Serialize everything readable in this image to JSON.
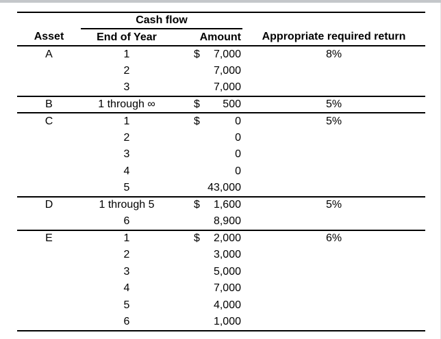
{
  "colors": {
    "table_line": "#000000",
    "background": "#ffffff",
    "frame_top_bar": "#c4c7ca",
    "frame_right_edge": "#e3e3e3"
  },
  "table": {
    "group_header": "Cash flow",
    "columns": [
      "Asset",
      "End of Year",
      "Amount",
      "Appropriate required return"
    ],
    "sections": [
      {
        "asset": "A",
        "required_return": "8%",
        "rows": [
          {
            "end_of_year": "1",
            "dollar": "$",
            "amount": "7,000"
          },
          {
            "end_of_year": "2",
            "dollar": "",
            "amount": "7,000"
          },
          {
            "end_of_year": "3",
            "dollar": "",
            "amount": "7,000"
          }
        ]
      },
      {
        "asset": "B",
        "required_return": "5%",
        "rows": [
          {
            "end_of_year": "1 through ∞",
            "dollar": "$",
            "amount": "500"
          }
        ]
      },
      {
        "asset": "C",
        "required_return": "5%",
        "rows": [
          {
            "end_of_year": "1",
            "dollar": "$",
            "amount": "0"
          },
          {
            "end_of_year": "2",
            "dollar": "",
            "amount": "0"
          },
          {
            "end_of_year": "3",
            "dollar": "",
            "amount": "0"
          },
          {
            "end_of_year": "4",
            "dollar": "",
            "amount": "0"
          },
          {
            "end_of_year": "5",
            "dollar": "",
            "amount": "43,000"
          }
        ]
      },
      {
        "asset": "D",
        "required_return": "5%",
        "rows": [
          {
            "end_of_year": "1 through 5",
            "dollar": "$",
            "amount": "1,600"
          },
          {
            "end_of_year": "6",
            "dollar": "",
            "amount": "8,900"
          }
        ]
      },
      {
        "asset": "E",
        "required_return": "6%",
        "rows": [
          {
            "end_of_year": "1",
            "dollar": "$",
            "amount": "2,000"
          },
          {
            "end_of_year": "2",
            "dollar": "",
            "amount": "3,000"
          },
          {
            "end_of_year": "3",
            "dollar": "",
            "amount": "5,000"
          },
          {
            "end_of_year": "4",
            "dollar": "",
            "amount": "7,000"
          },
          {
            "end_of_year": "5",
            "dollar": "",
            "amount": "4,000"
          },
          {
            "end_of_year": "6",
            "dollar": "",
            "amount": "1,000"
          }
        ]
      }
    ]
  }
}
